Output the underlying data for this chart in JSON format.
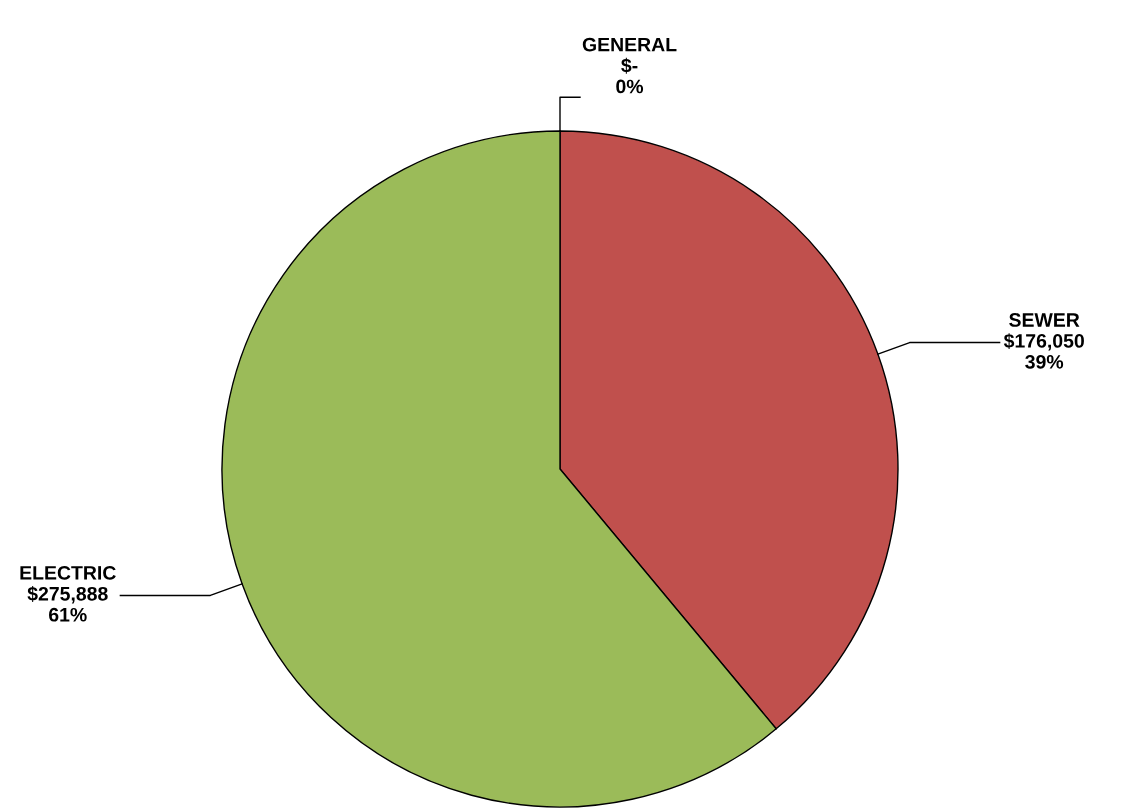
{
  "chart_data": {
    "type": "pie",
    "categories": [
      "GENERAL",
      "SEWER",
      "ELECTRIC"
    ],
    "values": [
      0,
      176050,
      275888
    ],
    "colors": [
      "#4f81bd",
      "#c0504d",
      "#9bbb59"
    ],
    "value_labels": [
      "$-\n0%",
      "$176,050\n39%",
      "$275,888\n61%"
    ],
    "legend": false
  }
}
